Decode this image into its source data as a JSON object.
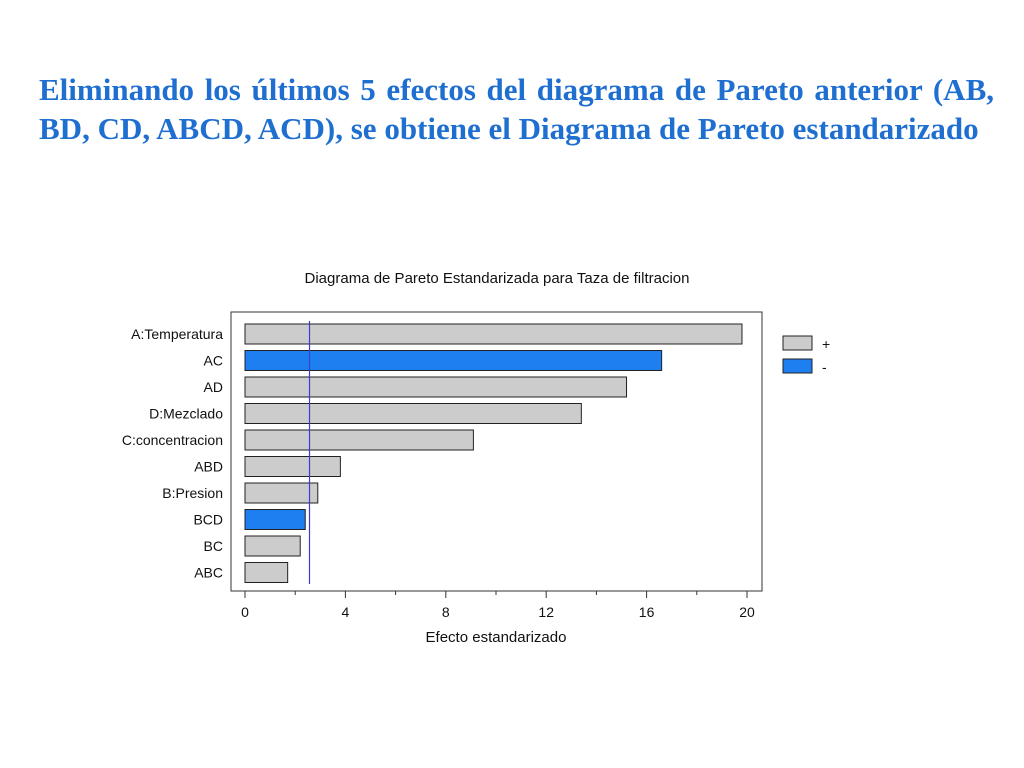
{
  "slide": {
    "heading": "Eliminando los últimos 5 efectos del diagrama de Pareto anterior (AB, BD, CD, ABCD, ACD), se obtiene el Diagrama de Pareto estandarizado"
  },
  "colors": {
    "heading": "#1f6fd1",
    "positive": "#cccccc",
    "negative": "#1e7ff0",
    "reference_line": "#3c3cd2"
  },
  "chart_data": {
    "type": "bar",
    "orientation": "horizontal",
    "title": "Diagrama de Pareto Estandarizada para Taza de filtracion",
    "xlabel": "Efecto estandarizado",
    "ylabel": "",
    "xlim": [
      0,
      20.6
    ],
    "xticks": [
      0,
      4,
      8,
      12,
      16,
      20
    ],
    "categories": [
      "A:Temperatura",
      "AC",
      "AD",
      "D:Mezclado",
      "C:concentracion",
      "ABD",
      "B:Presion",
      "BCD",
      "BC",
      "ABC"
    ],
    "values": [
      19.8,
      16.6,
      15.2,
      13.4,
      9.1,
      3.8,
      2.9,
      2.4,
      2.2,
      1.7
    ],
    "signs": [
      "+",
      "-",
      "+",
      "+",
      "+",
      "+",
      "+",
      "-",
      "+",
      "+"
    ],
    "reference_line": 2.57,
    "legend": {
      "position": "right",
      "entries": [
        {
          "label": "+",
          "color": "#cccccc"
        },
        {
          "label": "-",
          "color": "#1e7ff0"
        }
      ]
    },
    "grid": false
  }
}
